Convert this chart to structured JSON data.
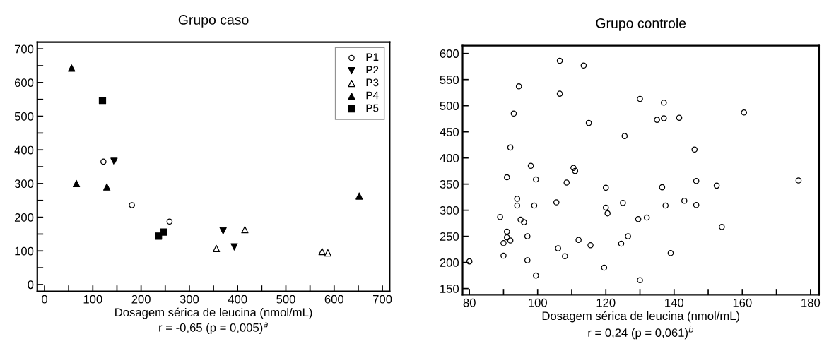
{
  "chart_data": [
    {
      "type": "scatter",
      "title": "Grupo caso",
      "xlabel": "Dosagem sérica de leucina (nmol/mL)",
      "annotations": [
        "r = -0,65 (p = 0,005)$^{a}$"
      ],
      "xlim": [
        -15,
        715
      ],
      "ylim": [
        -20,
        720
      ],
      "xticks": [
        0,
        {
          "value": 50,
          "label": null
        },
        100,
        {
          "value": 150,
          "label": null
        },
        200,
        {
          "value": 250,
          "label": null
        },
        300,
        {
          "value": 350,
          "label": null
        },
        400,
        {
          "value": 450,
          "label": null
        },
        500,
        {
          "value": 550,
          "label": null
        },
        600,
        {
          "value": 650,
          "label": null
        },
        700
      ],
      "yticks": [
        0,
        {
          "value": 50,
          "label": null
        },
        100,
        {
          "value": 150,
          "label": null
        },
        200,
        {
          "value": 250,
          "label": null
        },
        300,
        {
          "value": 350,
          "label": null
        },
        400,
        {
          "value": 450,
          "label": null
        },
        500,
        {
          "value": 550,
          "label": null
        },
        600,
        {
          "value": 650,
          "label": null
        },
        700
      ],
      "grid": false,
      "legend": "top right",
      "series": [
        {
          "name": "P1",
          "color": "#000000",
          "marker": "circle_open",
          "x": [
            122,
            181,
            259
          ],
          "values": [
            365,
            236,
            187
          ]
        },
        {
          "name": "P2",
          "color": "#000000",
          "marker": "triangle_down",
          "x": [
            144,
            370,
            393
          ],
          "values": [
            366,
            160,
            112
          ]
        },
        {
          "name": "P3",
          "color": "#000000",
          "marker": "triangle_open",
          "x": [
            356,
            415,
            575,
            587
          ],
          "values": [
            107,
            163,
            98,
            94
          ]
        },
        {
          "name": "P4",
          "color": "#000000",
          "marker": "triangle",
          "x": [
            56,
            66,
            129,
            652
          ],
          "values": [
            643,
            300,
            290,
            263
          ]
        },
        {
          "name": "P5",
          "color": "#000000",
          "marker": "square",
          "x": [
            120,
            236,
            247
          ],
          "values": [
            547,
            144,
            156
          ]
        }
      ]
    },
    {
      "type": "scatter",
      "title": "Grupo controle",
      "xlabel": "Dosagem sérica de leucina (nmol/mL)",
      "annotations": [
        "r = 0,24 (p = 0,061)$^{b}$"
      ],
      "xlim": [
        78,
        182.5
      ],
      "ylim": [
        138,
        615
      ],
      "xticks": [
        80,
        {
          "value": 90,
          "label": null
        },
        100,
        {
          "value": 110,
          "label": null
        },
        120,
        {
          "value": 130,
          "label": null
        },
        140,
        {
          "value": 150,
          "label": null
        },
        160,
        {
          "value": 170,
          "label": null
        },
        180
      ],
      "yticks": [
        150,
        200,
        250,
        300,
        350,
        400,
        450,
        500,
        550,
        600
      ],
      "grid": false,
      "series": [
        {
          "color": "#000000",
          "marker": "circle_open",
          "x": [
            80,
            89,
            90,
            90,
            91,
            91,
            91,
            92,
            92,
            93,
            94,
            94,
            94.5,
            95,
            96,
            97,
            97,
            98,
            99,
            99.5,
            99.5,
            105.5,
            106,
            106.5,
            106.5,
            108,
            108.5,
            110.5,
            111,
            112,
            113.5,
            115,
            115.5,
            119.5,
            120,
            120,
            120.5,
            124.5,
            125,
            125.5,
            126.5,
            129.5,
            130,
            130,
            132,
            135,
            136.5,
            137,
            137,
            137.5,
            139,
            141.5,
            143,
            146,
            146.5,
            146.5,
            152.5,
            154,
            160.5,
            176.5
          ],
          "values": [
            202,
            287,
            237,
            213,
            363,
            259,
            248,
            420,
            242,
            485,
            322,
            309,
            537,
            282,
            277,
            250,
            204,
            385,
            309,
            175,
            359,
            315,
            227,
            586,
            523,
            212,
            353,
            381,
            375,
            243,
            577,
            467,
            233,
            190,
            343,
            305,
            294,
            236,
            314,
            442,
            250,
            283,
            513,
            166,
            286,
            473,
            344,
            476,
            506,
            309,
            218,
            477,
            318,
            416,
            356,
            310,
            347,
            268,
            487,
            357
          ]
        }
      ]
    }
  ]
}
